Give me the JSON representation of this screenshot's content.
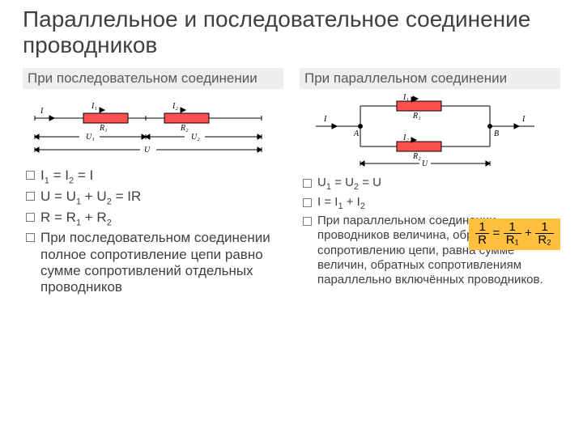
{
  "title": "Параллельное и последовательное соединение проводников",
  "series": {
    "heading": "При последовательном соединении",
    "bullets": {
      "b1_html": "I<span class='sub'>1</span> = I<span class='sub'>2</span> = I",
      "b2_html": "U = U<span class='sub'>1</span> + U<span class='sub'>2</span> = IR",
      "b3_html": "R = R<span class='sub'>1</span> + R<span class='sub'>2</span>",
      "b4": "При последовательном соединении полное сопротивление цепи равно сумме сопротивлений отдельных проводников"
    },
    "diagram": {
      "labels": {
        "I": "I",
        "I1": "I₁",
        "I2": "I₂",
        "R1": "R₁",
        "R2": "R₂",
        "U1": "U₁",
        "U2": "U₂",
        "U": "U"
      },
      "colors": {
        "fill": "#ff5050",
        "stroke": "#000000"
      }
    }
  },
  "parallel": {
    "heading": "При параллельном соединении",
    "bullets": {
      "b1_html": "U<span class='sub'>1</span> = U<span class='sub'>2</span> = U",
      "b2_html": "I = I<span class='sub'>1</span> + I<span class='sub'>2</span>",
      "b3": "При параллельном соединении проводников величина, обратная общему сопротивлению цепи, равна сумме величин, обратных сопротивлениям параллельно включённых проводников."
    },
    "formula": {
      "num1": "1",
      "den1": "R",
      "eq": "=",
      "num2": "1",
      "den2": "R₁",
      "plus": "+",
      "num3": "1",
      "den3": "R₂",
      "bg": "#ffbf3f"
    },
    "diagram": {
      "labels": {
        "I": "I",
        "I1": "I₁",
        "I2": "I₂",
        "R1": "R₁",
        "R2": "R₂",
        "A": "A",
        "B": "B",
        "U": "U"
      },
      "colors": {
        "fill": "#ff5050",
        "stroke": "#000000"
      }
    }
  }
}
